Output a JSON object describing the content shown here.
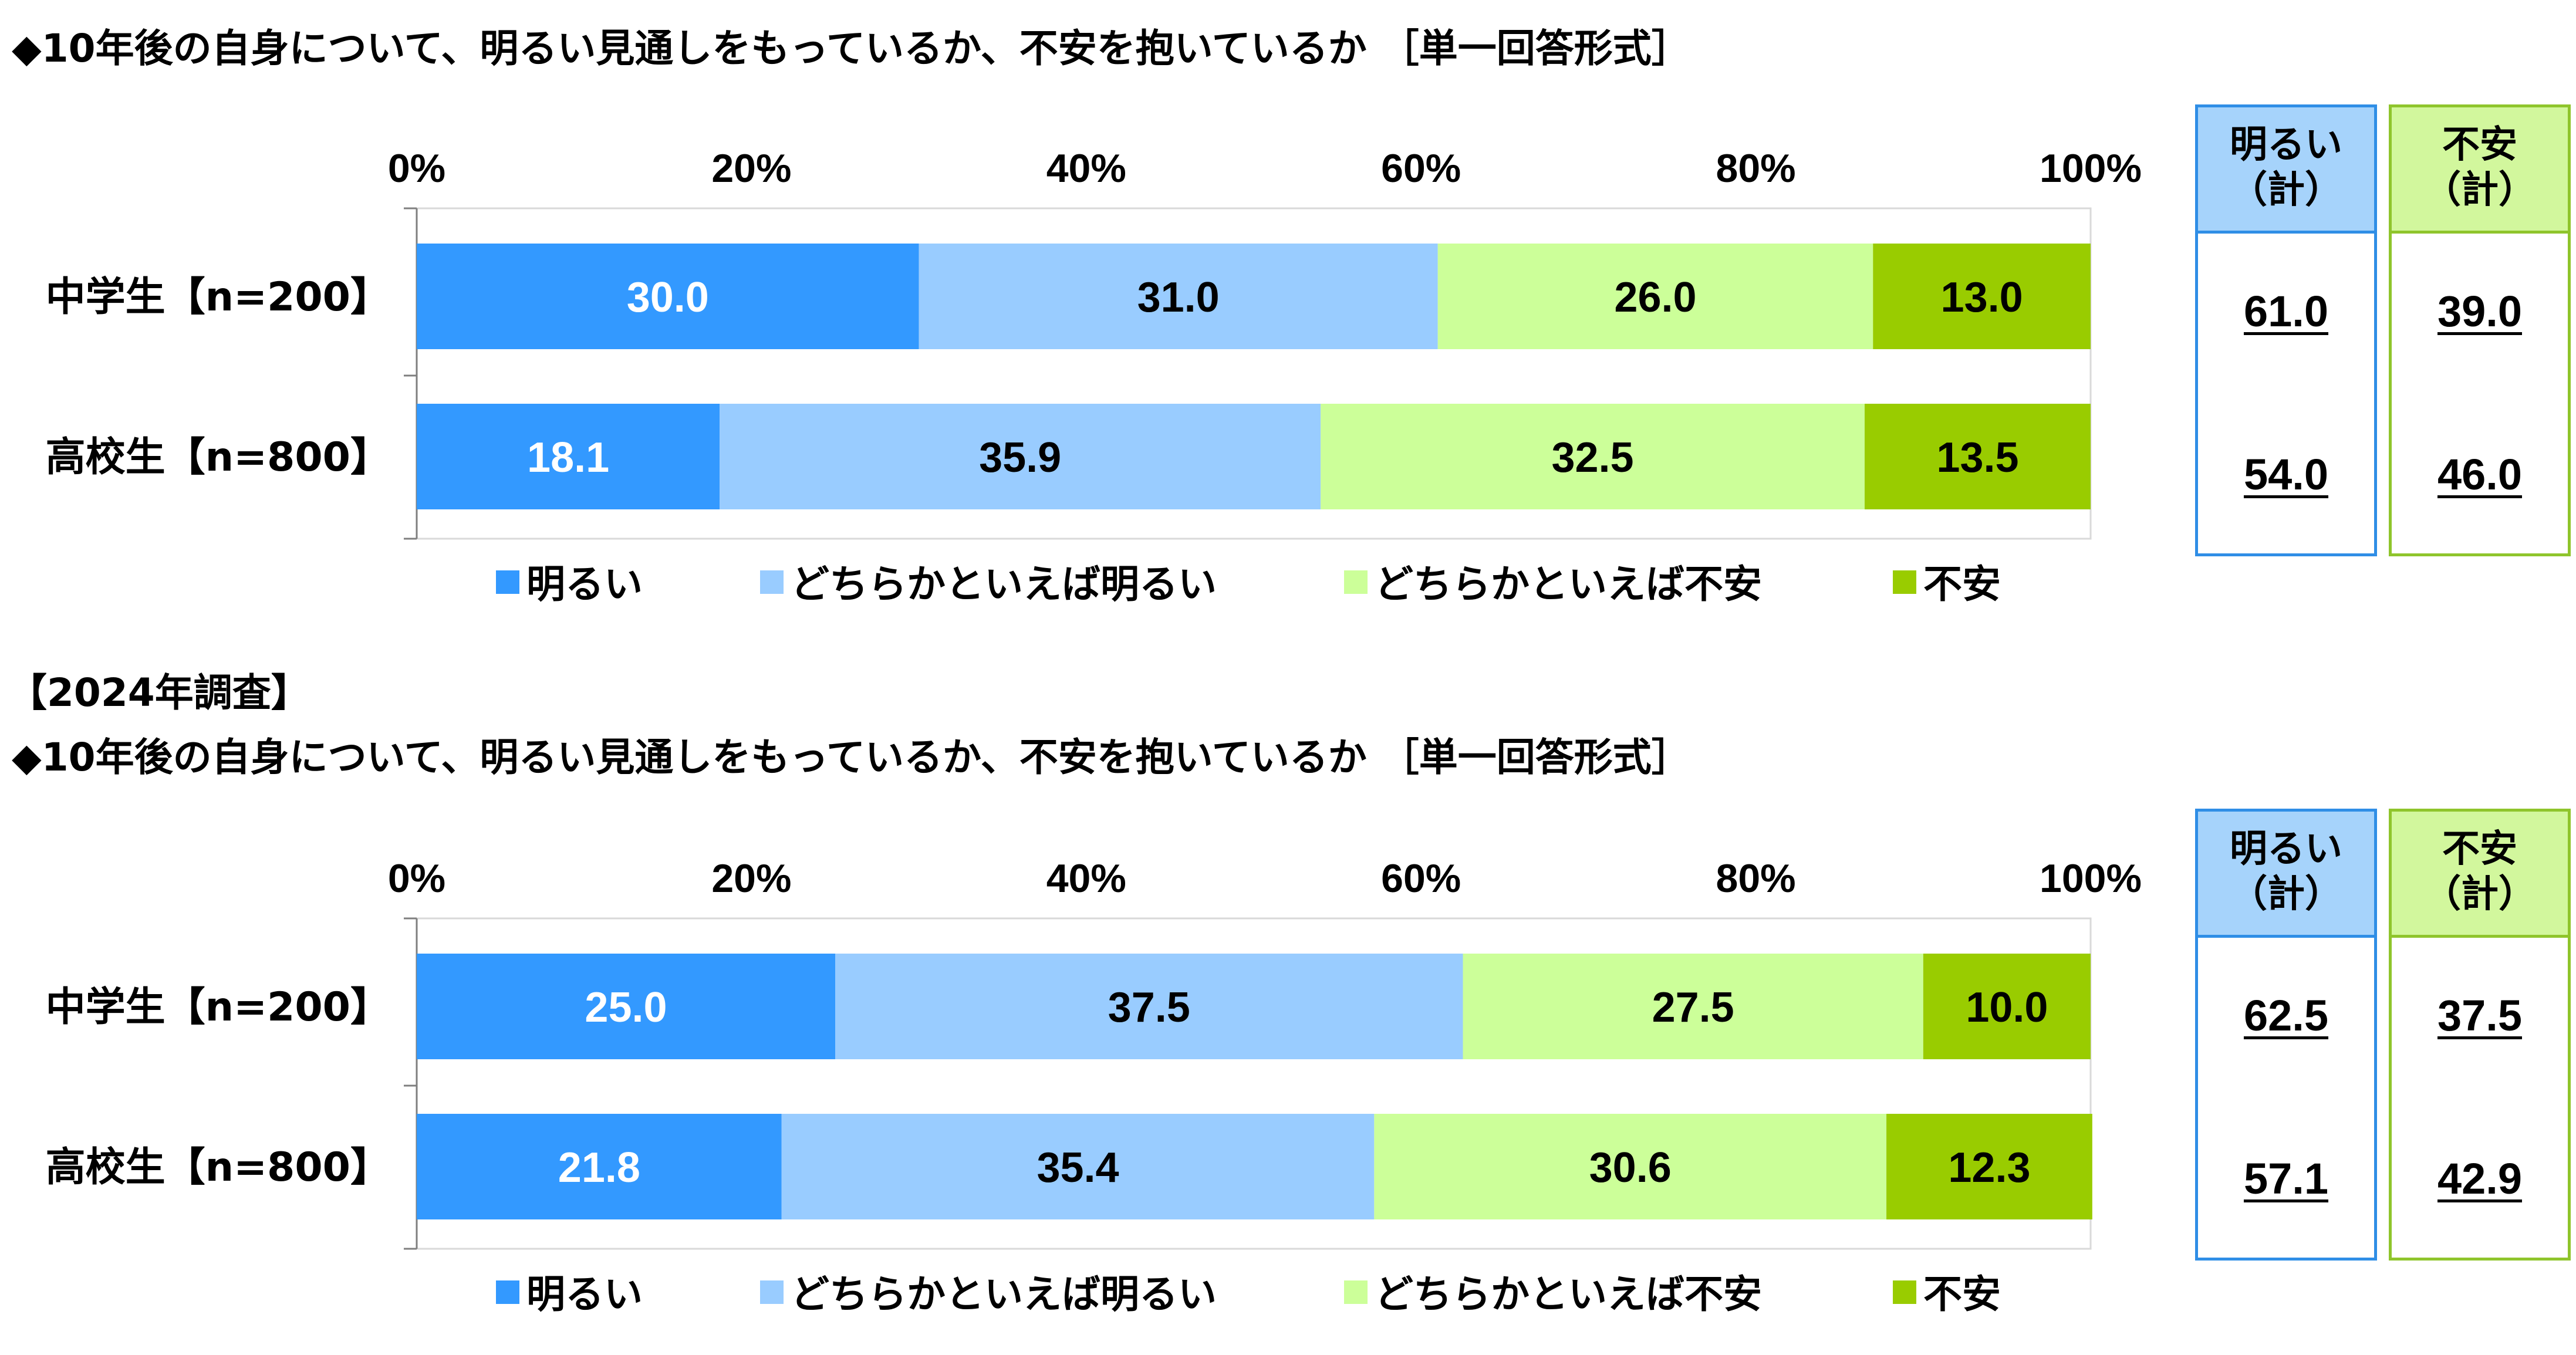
{
  "sections": [
    {
      "label": "",
      "title": "◆10年後の自身について、明るい見通しをもっているか、不安を抱いているか ［単一回答形式］",
      "summary_headers": [
        {
          "line1": "明るい",
          "line2": "（計）",
          "color": "#a6d3fb",
          "border": "#2f8ee6"
        },
        {
          "line1": "不安",
          "line2": "（計）",
          "color": "#d2f79d",
          "border": "#8fc52c"
        }
      ],
      "summary_values": [
        [
          "61.0",
          "39.0"
        ],
        [
          "54.0",
          "46.0"
        ]
      ]
    },
    {
      "label": "【2024年調査】",
      "title": "◆10年後の自身について、明るい見通しをもっているか、不安を抱いているか ［単一回答形式］",
      "summary_headers": [
        {
          "line1": "明るい",
          "line2": "（計）",
          "color": "#a6d3fb",
          "border": "#2f8ee6"
        },
        {
          "line1": "不安",
          "line2": "（計）",
          "color": "#d2f79d",
          "border": "#8fc52c"
        }
      ],
      "summary_values": [
        [
          "62.5",
          "37.5"
        ],
        [
          "57.1",
          "42.9"
        ]
      ]
    }
  ],
  "chart_data": [
    {
      "type": "bar",
      "orientation": "horizontal",
      "stacked": true,
      "title": "◆10年後の自身について、明るい見通しをもっているか、不安を抱いているか ［単一回答形式］",
      "categories": [
        "中学生【n=200】",
        "高校生【n=800】"
      ],
      "x_ticks": [
        "0%",
        "20%",
        "40%",
        "60%",
        "80%",
        "100%"
      ],
      "xlim": [
        0,
        100
      ],
      "legend_position": "bottom",
      "series": [
        {
          "name": "明るい",
          "color": "#3399ff",
          "label_color": "#ffffff",
          "values": [
            30.0,
            18.1
          ]
        },
        {
          "name": "どちらかといえば明るい",
          "color": "#99ccff",
          "label_color": "#000000",
          "values": [
            31.0,
            35.9
          ]
        },
        {
          "name": "どちらかといえば不安",
          "color": "#ccff99",
          "label_color": "#000000",
          "values": [
            26.0,
            32.5
          ]
        },
        {
          "name": "不安",
          "color": "#99cc00",
          "label_color": "#000000",
          "values": [
            13.0,
            13.5
          ]
        }
      ]
    },
    {
      "type": "bar",
      "orientation": "horizontal",
      "stacked": true,
      "title": "【2024年調査】◆10年後の自身について、明るい見通しをもっているか、不安を抱いているか ［単一回答形式］",
      "categories": [
        "中学生【n=200】",
        "高校生【n=800】"
      ],
      "x_ticks": [
        "0%",
        "20%",
        "40%",
        "60%",
        "80%",
        "100%"
      ],
      "xlim": [
        0,
        100
      ],
      "legend_position": "bottom",
      "series": [
        {
          "name": "明るい",
          "color": "#3399ff",
          "label_color": "#ffffff",
          "values": [
            25.0,
            21.8
          ]
        },
        {
          "name": "どちらかといえば明るい",
          "color": "#99ccff",
          "label_color": "#000000",
          "values": [
            37.5,
            35.4
          ]
        },
        {
          "name": "どちらかといえば不安",
          "color": "#ccff99",
          "label_color": "#000000",
          "values": [
            27.5,
            30.6
          ]
        },
        {
          "name": "不安",
          "color": "#99cc00",
          "label_color": "#000000",
          "values": [
            10.0,
            12.3
          ]
        }
      ]
    }
  ]
}
